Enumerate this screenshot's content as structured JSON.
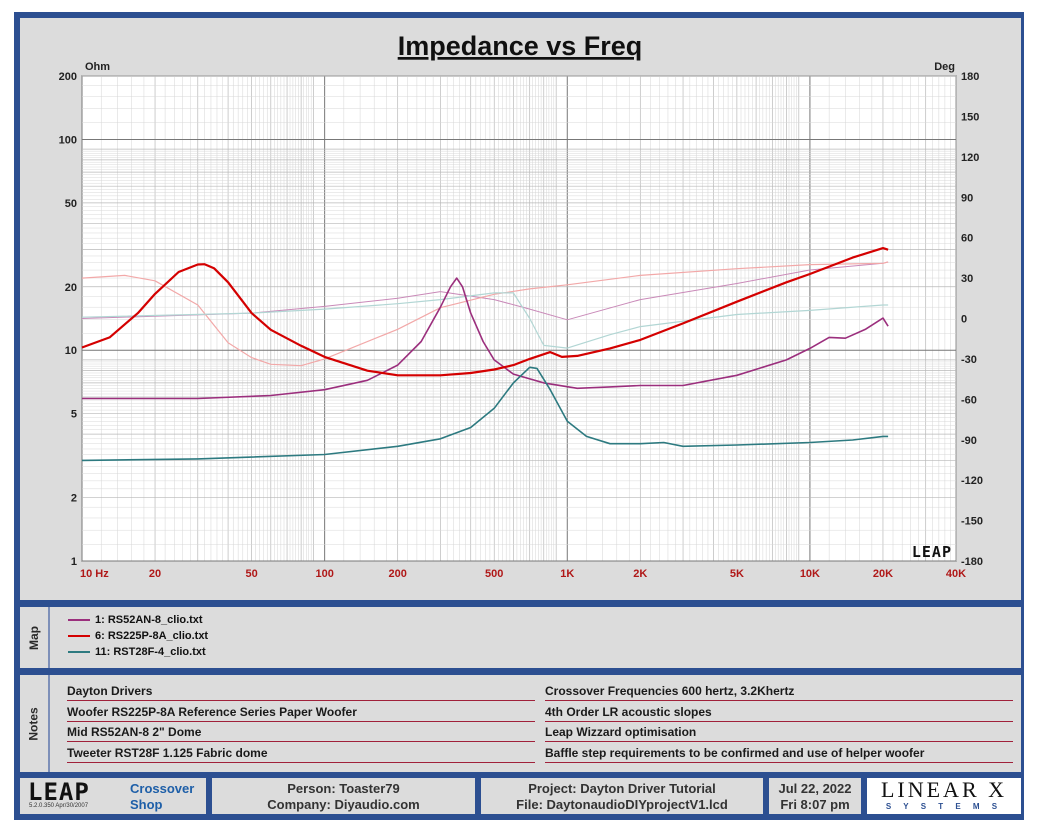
{
  "chart_data": {
    "type": "line",
    "title": "Impedance vs Freq",
    "left_unit": "Ohm",
    "right_unit": "Deg",
    "x_scale": "log",
    "xlim": [
      10,
      40000
    ],
    "y_scale": "log",
    "ylim": [
      1,
      200
    ],
    "y2lim": [
      -180,
      180
    ],
    "x_ticks": [
      {
        "v": 10,
        "label": "10  Hz"
      },
      {
        "v": 20,
        "label": "20"
      },
      {
        "v": 50,
        "label": "50"
      },
      {
        "v": 100,
        "label": "100"
      },
      {
        "v": 200,
        "label": "200"
      },
      {
        "v": 500,
        "label": "500"
      },
      {
        "v": 1000,
        "label": "1K"
      },
      {
        "v": 2000,
        "label": "2K"
      },
      {
        "v": 5000,
        "label": "5K"
      },
      {
        "v": 10000,
        "label": "10K"
      },
      {
        "v": 20000,
        "label": "20K"
      },
      {
        "v": 40000,
        "label": "40K"
      }
    ],
    "y_ticks": [
      {
        "v": 200,
        "label": "200"
      },
      {
        "v": 100,
        "label": "100"
      },
      {
        "v": 50,
        "label": "50"
      },
      {
        "v": 20,
        "label": "20"
      },
      {
        "v": 10,
        "label": "10"
      },
      {
        "v": 5,
        "label": "5"
      },
      {
        "v": 2,
        "label": "2"
      },
      {
        "v": 1,
        "label": "1"
      }
    ],
    "y2_ticks": [
      {
        "v": 180,
        "label": "180"
      },
      {
        "v": 150,
        "label": "150"
      },
      {
        "v": 120,
        "label": "120"
      },
      {
        "v": 90,
        "label": "90"
      },
      {
        "v": 60,
        "label": "60"
      },
      {
        "v": 30,
        "label": "30"
      },
      {
        "v": 0,
        "label": "0"
      },
      {
        "v": -30,
        "label": "-30"
      },
      {
        "v": -60,
        "label": "-60"
      },
      {
        "v": -90,
        "label": "-90"
      },
      {
        "v": -120,
        "label": "-120"
      },
      {
        "v": -150,
        "label": "-150"
      },
      {
        "v": -180,
        "label": "-180"
      }
    ],
    "watermark": "LEAP",
    "grid": true,
    "series": [
      {
        "name": "1: RS52AN-8_clio.txt",
        "color": "#9b2f7d",
        "axis": "left",
        "width": 1.6,
        "points": [
          [
            10,
            5.9
          ],
          [
            30,
            5.9
          ],
          [
            60,
            6.1
          ],
          [
            100,
            6.5
          ],
          [
            150,
            7.2
          ],
          [
            200,
            8.5
          ],
          [
            250,
            11
          ],
          [
            300,
            16
          ],
          [
            330,
            20
          ],
          [
            350,
            22
          ],
          [
            370,
            20
          ],
          [
            400,
            15
          ],
          [
            450,
            11
          ],
          [
            500,
            9
          ],
          [
            600,
            7.7
          ],
          [
            800,
            7.0
          ],
          [
            1100,
            6.6
          ],
          [
            1500,
            6.7
          ],
          [
            2000,
            6.8
          ],
          [
            3000,
            6.8
          ],
          [
            5000,
            7.6
          ],
          [
            8000,
            9.0
          ],
          [
            10000,
            10.2
          ],
          [
            12000,
            11.5
          ],
          [
            14000,
            11.4
          ],
          [
            17000,
            12.6
          ],
          [
            20000,
            14.2
          ],
          [
            21000,
            13
          ]
        ]
      },
      {
        "name": "6: RS225P-8A_clio.txt",
        "color": "#d40000",
        "axis": "left",
        "width": 2.2,
        "points": [
          [
            10,
            10.3
          ],
          [
            13,
            11.5
          ],
          [
            17,
            15
          ],
          [
            20,
            18.5
          ],
          [
            25,
            23.5
          ],
          [
            30,
            25.5
          ],
          [
            32,
            25.6
          ],
          [
            35,
            24.5
          ],
          [
            40,
            21
          ],
          [
            50,
            15
          ],
          [
            60,
            12.5
          ],
          [
            80,
            10.5
          ],
          [
            100,
            9.3
          ],
          [
            150,
            8.0
          ],
          [
            200,
            7.6
          ],
          [
            300,
            7.6
          ],
          [
            400,
            7.8
          ],
          [
            500,
            8.1
          ],
          [
            600,
            8.5
          ],
          [
            700,
            9.1
          ],
          [
            850,
            9.8
          ],
          [
            950,
            9.3
          ],
          [
            1100,
            9.4
          ],
          [
            1500,
            10.2
          ],
          [
            2000,
            11.2
          ],
          [
            3000,
            13.4
          ],
          [
            5000,
            17
          ],
          [
            8000,
            21
          ],
          [
            10000,
            23
          ],
          [
            15000,
            27.5
          ],
          [
            20000,
            30.5
          ],
          [
            21000,
            30
          ]
        ]
      },
      {
        "name": "11: RST28F-4_clio.txt",
        "color": "#2d7a80",
        "axis": "left",
        "width": 1.6,
        "points": [
          [
            10,
            3.0
          ],
          [
            30,
            3.05
          ],
          [
            100,
            3.2
          ],
          [
            200,
            3.5
          ],
          [
            300,
            3.8
          ],
          [
            400,
            4.3
          ],
          [
            500,
            5.3
          ],
          [
            600,
            7.0
          ],
          [
            700,
            8.3
          ],
          [
            750,
            8.2
          ],
          [
            850,
            6.5
          ],
          [
            1000,
            4.6
          ],
          [
            1200,
            3.9
          ],
          [
            1500,
            3.6
          ],
          [
            2000,
            3.6
          ],
          [
            2500,
            3.65
          ],
          [
            3000,
            3.5
          ],
          [
            5000,
            3.55
          ],
          [
            10000,
            3.65
          ],
          [
            15000,
            3.75
          ],
          [
            20000,
            3.9
          ],
          [
            21000,
            3.9
          ]
        ]
      },
      {
        "name": "1 phase",
        "color": "#c989b8",
        "axis": "right",
        "width": 1.0,
        "points": [
          [
            10,
            0
          ],
          [
            50,
            4
          ],
          [
            100,
            9
          ],
          [
            200,
            15
          ],
          [
            300,
            20
          ],
          [
            500,
            14
          ],
          [
            700,
            7
          ],
          [
            1000,
            -1
          ],
          [
            2000,
            14
          ],
          [
            5000,
            26
          ],
          [
            10000,
            36
          ],
          [
            20000,
            41
          ],
          [
            21000,
            42
          ]
        ]
      },
      {
        "name": "6 phase",
        "color": "#f2a8a8",
        "axis": "right",
        "width": 1.2,
        "points": [
          [
            10,
            30
          ],
          [
            15,
            32
          ],
          [
            20,
            28
          ],
          [
            30,
            10
          ],
          [
            40,
            -18
          ],
          [
            50,
            -29
          ],
          [
            60,
            -34
          ],
          [
            80,
            -35
          ],
          [
            100,
            -30
          ],
          [
            200,
            -8
          ],
          [
            300,
            8
          ],
          [
            500,
            18
          ],
          [
            700,
            22
          ],
          [
            1000,
            25
          ],
          [
            2000,
            32
          ],
          [
            5000,
            37
          ],
          [
            10000,
            40
          ],
          [
            20000,
            41
          ],
          [
            21000,
            42
          ]
        ]
      },
      {
        "name": "11 phase",
        "color": "#b2d6d4",
        "axis": "right",
        "width": 1.2,
        "points": [
          [
            10,
            1
          ],
          [
            50,
            4
          ],
          [
            100,
            7
          ],
          [
            200,
            11
          ],
          [
            300,
            14
          ],
          [
            500,
            19
          ],
          [
            600,
            19
          ],
          [
            700,
            0
          ],
          [
            800,
            -20
          ],
          [
            1000,
            -22
          ],
          [
            1500,
            -12
          ],
          [
            2000,
            -6
          ],
          [
            5000,
            3
          ],
          [
            10000,
            6
          ],
          [
            20000,
            10
          ],
          [
            21000,
            10
          ]
        ]
      }
    ]
  },
  "map": {
    "label": "Map",
    "items": [
      {
        "label": "1: RS52AN-8_clio.txt",
        "color": "#9b2f7d"
      },
      {
        "label": "6: RS225P-8A_clio.txt",
        "color": "#d40000"
      },
      {
        "label": "11: RST28F-4_clio.txt",
        "color": "#2d7a80"
      }
    ]
  },
  "notes": {
    "label": "Notes",
    "left": [
      "Dayton Drivers",
      "Woofer RS225P-8A Reference Series Paper Woofer",
      "Mid RS52AN-8 2\" Dome",
      "Tweeter RST28F 1.125 Fabric dome"
    ],
    "right": [
      "Crossover Frequencies 600 hertz, 3.2Khertz",
      "4th Order LR acoustic slopes",
      "Leap Wizzard optimisation",
      "Baffle step requirements to be confirmed and use of helper woofer"
    ]
  },
  "footer": {
    "logo": "LEAP",
    "version": "5.2.0.350   Apr/30/2007",
    "product_line1": "Crossover",
    "product_line2": "Shop",
    "person": "Person: Toaster79",
    "company": "Company: Diyaudio.com",
    "project": "Project: Dayton Driver Tutorial",
    "file": "File: DaytonaudioDIYprojectV1.lcd",
    "date": "Jul 22, 2022",
    "time": "Fri  8:07 pm",
    "brand": "LINEAR X",
    "brand_sub": "S Y S T E M S"
  }
}
